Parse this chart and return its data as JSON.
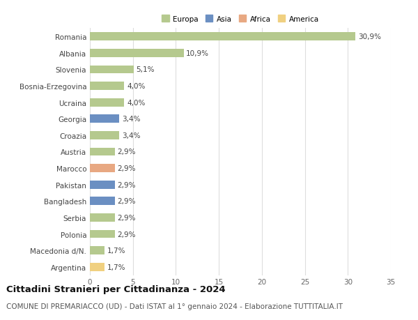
{
  "countries": [
    "Romania",
    "Albania",
    "Slovenia",
    "Bosnia-Erzegovina",
    "Ucraina",
    "Georgia",
    "Croazia",
    "Austria",
    "Marocco",
    "Pakistan",
    "Bangladesh",
    "Serbia",
    "Polonia",
    "Macedonia d/N.",
    "Argentina"
  ],
  "values": [
    30.9,
    10.9,
    5.1,
    4.0,
    4.0,
    3.4,
    3.4,
    2.9,
    2.9,
    2.9,
    2.9,
    2.9,
    2.9,
    1.7,
    1.7
  ],
  "labels": [
    "30,9%",
    "10,9%",
    "5,1%",
    "4,0%",
    "4,0%",
    "3,4%",
    "3,4%",
    "2,9%",
    "2,9%",
    "2,9%",
    "2,9%",
    "2,9%",
    "2,9%",
    "1,7%",
    "1,7%"
  ],
  "continents": [
    "Europa",
    "Europa",
    "Europa",
    "Europa",
    "Europa",
    "Asia",
    "Europa",
    "Europa",
    "Africa",
    "Asia",
    "Asia",
    "Europa",
    "Europa",
    "Europa",
    "America"
  ],
  "colors": {
    "Europa": "#b5c98e",
    "Asia": "#6b8fc2",
    "Africa": "#e8a882",
    "America": "#f0d080"
  },
  "legend_order": [
    "Europa",
    "Asia",
    "Africa",
    "America"
  ],
  "title": "Cittadini Stranieri per Cittadinanza - 2024",
  "subtitle": "COMUNE DI PREMARIACCO (UD) - Dati ISTAT al 1° gennaio 2024 - Elaborazione TUTTITALIA.IT",
  "xlim": [
    0,
    35
  ],
  "xticks": [
    0,
    5,
    10,
    15,
    20,
    25,
    30,
    35
  ],
  "background_color": "#ffffff",
  "grid_color": "#dddddd",
  "bar_height": 0.5,
  "label_fontsize": 7.5,
  "tick_fontsize": 7.5,
  "title_fontsize": 9.5,
  "subtitle_fontsize": 7.5
}
